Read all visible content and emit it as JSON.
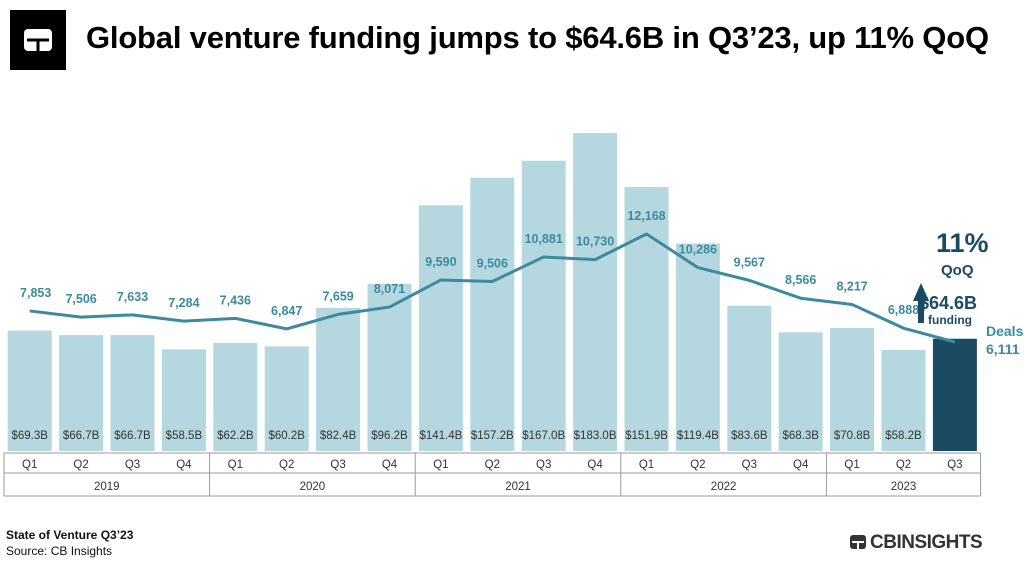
{
  "header": {
    "title": "Global venture funding jumps to $64.6B in Q3’23, up 11% QoQ"
  },
  "footer": {
    "report": "State of Venture Q3’23",
    "source": "Source: CB Insights",
    "brand": "CBINSIGHTS"
  },
  "colors": {
    "bar": "#b5d8e0",
    "bar_highlight": "#1b4a63",
    "line": "#3d8a9e",
    "label_dark": "#1b4a63",
    "axis": "#9a9a9a"
  },
  "chart_data": {
    "type": "bar",
    "categories": [
      "Q1",
      "Q2",
      "Q3",
      "Q4",
      "Q1",
      "Q2",
      "Q3",
      "Q4",
      "Q1",
      "Q2",
      "Q3",
      "Q4",
      "Q1",
      "Q2",
      "Q3",
      "Q4",
      "Q1",
      "Q2",
      "Q3"
    ],
    "years": [
      {
        "label": "2019",
        "quarters": 4
      },
      {
        "label": "2020",
        "quarters": 4
      },
      {
        "label": "2021",
        "quarters": 4
      },
      {
        "label": "2022",
        "quarters": 4
      },
      {
        "label": "2023",
        "quarters": 3
      }
    ],
    "series": [
      {
        "name": "funding",
        "type": "bar",
        "unit": "$B",
        "values": [
          69.3,
          66.7,
          66.7,
          58.5,
          62.2,
          60.2,
          82.4,
          96.2,
          141.4,
          157.2,
          167.0,
          183.0,
          151.9,
          119.4,
          83.6,
          68.3,
          70.8,
          58.2,
          64.6
        ],
        "labels": [
          "$69.3B",
          "$66.7B",
          "$66.7B",
          "$58.5B",
          "$62.2B",
          "$60.2B",
          "$82.4B",
          "$96.2B",
          "$141.4B",
          "$157.2B",
          "$167.0B",
          "$183.0B",
          "$151.9B",
          "$119.4B",
          "$83.6B",
          "$68.3B",
          "$70.8B",
          "$58.2B",
          ""
        ]
      },
      {
        "name": "Deals",
        "type": "line",
        "values": [
          7853,
          7506,
          7633,
          7284,
          7436,
          6847,
          7659,
          8071,
          9590,
          9506,
          10881,
          10730,
          12168,
          10286,
          9567,
          8566,
          8217,
          6888,
          6111
        ],
        "labels": [
          "7,853",
          "7,506",
          "7,633",
          "7,284",
          "7,436",
          "6,847",
          "7,659",
          "8,071",
          "9,590",
          "9,506",
          "10,881",
          "10,730",
          "12,168",
          "10,286",
          "9,567",
          "8,566",
          "8,217",
          "6,888",
          "6,111"
        ]
      }
    ],
    "highlight_index": 18,
    "annotations": {
      "change": "11%",
      "change_period": "QoQ",
      "funding_value": "$64.6B",
      "funding_label": "funding",
      "deals_label": "Deals"
    }
  }
}
